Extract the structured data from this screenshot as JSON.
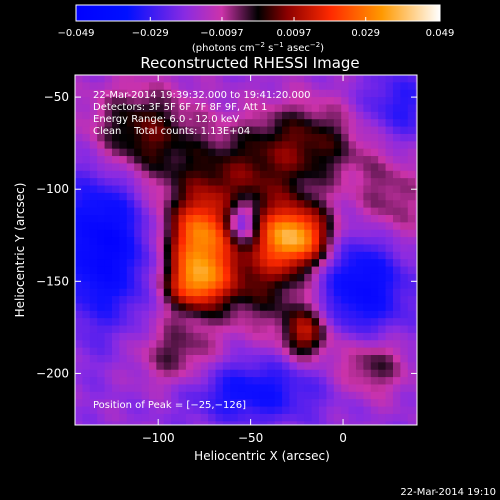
{
  "chart_data": {
    "type": "heatmap",
    "title": "Reconstructed RHESSI Image",
    "xlabel": "Heliocentric X (arcsec)",
    "ylabel": "Heliocentric Y (arcsec)",
    "xlim": [
      -145,
      40
    ],
    "ylim": [
      -228,
      -38
    ],
    "x_ticks": [
      -100,
      -50,
      0
    ],
    "x_tick_labels": [
      "−100",
      "−50",
      "0"
    ],
    "y_ticks": [
      -50,
      -100,
      -150,
      -200
    ],
    "y_tick_labels": [
      "−50",
      "−100",
      "−150",
      "−200"
    ],
    "colorbar": {
      "range": [
        -0.049,
        0.049
      ],
      "ticks": [
        -0.049,
        -0.029,
        -0.0097,
        0.0097,
        0.029,
        0.049
      ],
      "tick_labels": [
        "−0.049",
        "−0.029",
        "−0.0097",
        "0.0097",
        "0.029",
        "0.049"
      ],
      "units_line1": "(photons cm",
      "units_exp1": "−2",
      "units_line2": " s",
      "units_exp2": "−1",
      "units_line3": " asec",
      "units_exp3": "−2",
      "units_close": ")"
    },
    "annotations": [
      "22-Mar-2014 19:39:32.000 to 19:41:20.000",
      "Detectors: 3F 5F 6F 7F 8F 9F, Att 1",
      "Energy Range: 6.0 - 12.0 keV",
      "Clean    Total counts: 1.13E+04"
    ],
    "peak_label": "Position of Peak = [−25,−126]",
    "peak": [
      -25,
      -126
    ],
    "sources": [
      {
        "x": -25,
        "y": -126,
        "sx": 14,
        "sy": 12,
        "amp": 0.049
      },
      {
        "x": -78,
        "y": -128,
        "sx": 13,
        "sy": 15,
        "amp": 0.04
      },
      {
        "x": -80,
        "y": -152,
        "sx": 12,
        "sy": 10,
        "amp": 0.036
      },
      {
        "x": -20,
        "y": -178,
        "sx": 9,
        "sy": 10,
        "amp": 0.03
      },
      {
        "x": -60,
        "y": -100,
        "sx": 25,
        "sy": 20,
        "amp": 0.022
      },
      {
        "x": -45,
        "y": -150,
        "sx": 20,
        "sy": 18,
        "amp": 0.02
      },
      {
        "x": -110,
        "y": -70,
        "sx": 20,
        "sy": 18,
        "amp": 0.024
      },
      {
        "x": -20,
        "y": -75,
        "sx": 22,
        "sy": 16,
        "amp": 0.021
      },
      {
        "x": 25,
        "y": -110,
        "sx": 14,
        "sy": 20,
        "amp": 0.015
      },
      {
        "x": -90,
        "y": -190,
        "sx": 16,
        "sy": 14,
        "amp": 0.016
      },
      {
        "x": 15,
        "y": -195,
        "sx": 14,
        "sy": 12,
        "amp": 0.018
      },
      {
        "x": -55,
        "y": -118,
        "sx": 6,
        "sy": 9,
        "amp": -0.03
      },
      {
        "x": -130,
        "y": -130,
        "sx": 18,
        "sy": 30,
        "amp": -0.028
      },
      {
        "x": 10,
        "y": -150,
        "sx": 18,
        "sy": 22,
        "amp": -0.026
      },
      {
        "x": -50,
        "y": -210,
        "sx": 25,
        "sy": 12,
        "amp": -0.02
      },
      {
        "x": 30,
        "y": -55,
        "sx": 14,
        "sy": 14,
        "amp": -0.015
      }
    ]
  },
  "footer": {
    "timestamp": "22-Mar-2014 19:10"
  }
}
